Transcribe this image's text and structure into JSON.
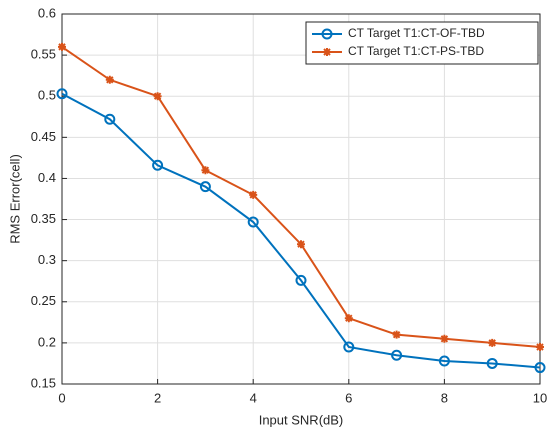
{
  "chart_data": {
    "type": "line",
    "x_label": "Input SNR(dB)",
    "y_label": "RMS Error(cell)",
    "x": [
      0,
      1,
      2,
      3,
      4,
      5,
      6,
      7,
      8,
      9,
      10
    ],
    "series": [
      {
        "name": "CT Target T1:CT-OF-TBD",
        "color": "#0072bd",
        "marker": "o",
        "values": [
          0.503,
          0.472,
          0.416,
          0.39,
          0.347,
          0.276,
          0.195,
          0.185,
          0.178,
          0.175,
          0.17
        ]
      },
      {
        "name": "CT Target T1:CT-PS-TBD",
        "color": "#d95319",
        "marker": "*",
        "values": [
          0.56,
          0.52,
          0.5,
          0.41,
          0.38,
          0.32,
          0.23,
          0.21,
          0.205,
          0.2,
          0.195
        ]
      }
    ],
    "xlim": [
      0,
      10
    ],
    "xticks": [
      0,
      2,
      4,
      6,
      8,
      10
    ],
    "ylim": [
      0.15,
      0.6
    ],
    "yticks": [
      0.15,
      0.2,
      0.25,
      0.3,
      0.35,
      0.4,
      0.45,
      0.5,
      0.55,
      0.6
    ],
    "grid": true,
    "legend": "upper right"
  }
}
